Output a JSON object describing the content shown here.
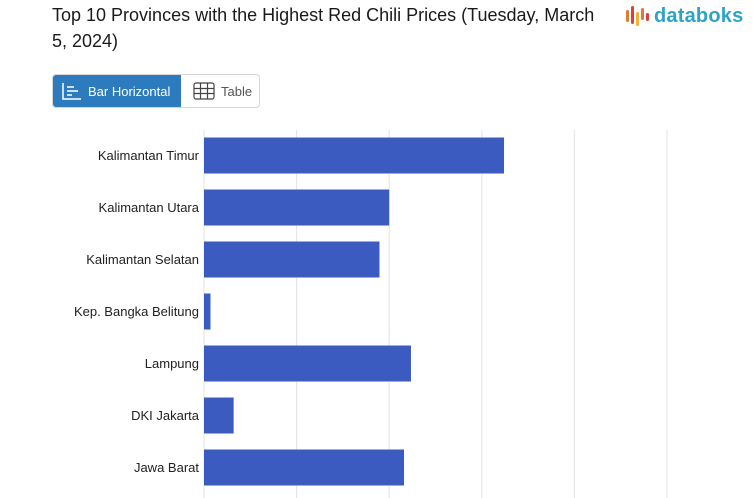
{
  "header": {
    "title": "Top 10 Provinces with the Highest Red Chili Prices (Tuesday, March 5, 2024)",
    "logo_text": "databoks",
    "logo_colors": [
      "#e8772e",
      "#e23c3c",
      "#f2b134",
      "#2ea3c9"
    ]
  },
  "view_toggle": {
    "bar_label": "Bar Horizontal",
    "table_label": "Table",
    "active": "bar"
  },
  "colors": {
    "bar": "#3b5bc1",
    "grid": "#e3e3e3",
    "toggle_active": "#2d7bbf"
  },
  "chart_data": {
    "type": "bar",
    "orientation": "horizontal",
    "categories": [
      "Kalimantan Timur",
      "Kalimantan Utara",
      "Kalimantan Selatan",
      "Kep. Bangka Belitung",
      "Lampung",
      "DKI Jakarta",
      "Jawa Barat"
    ],
    "values": [
      82400,
      70000,
      68950,
      50700,
      72350,
      53200,
      71600
    ],
    "xlim": [
      50000,
      100000
    ],
    "grid": true,
    "legend": "none"
  }
}
